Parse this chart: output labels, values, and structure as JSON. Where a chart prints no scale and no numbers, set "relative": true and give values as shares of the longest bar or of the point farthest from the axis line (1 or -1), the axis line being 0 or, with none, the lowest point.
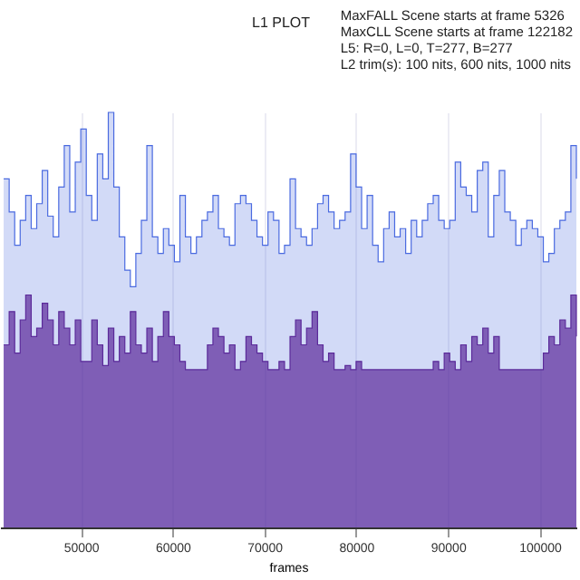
{
  "chart_data": {
    "type": "area",
    "title": "L1 PLOT",
    "xlabel": "frames",
    "annotations": [
      "MaxFALL Scene starts at frame 5326",
      "MaxCLL Scene starts at frame 122182",
      "L5: R=0, L=0, T=277, B=277",
      "L2 trim(s): 100 nits, 600 nits, 1000 nits"
    ],
    "relative": true,
    "xlim": [
      41200,
      104000
    ],
    "xticks": [
      50000,
      60000,
      70000,
      80000,
      90000,
      100000
    ],
    "grid": "x",
    "x": [
      41600,
      42200,
      42800,
      43400,
      44000,
      44600,
      45200,
      45800,
      46400,
      47000,
      47600,
      48200,
      48800,
      49400,
      50000,
      50600,
      51200,
      51800,
      52400,
      53000,
      53600,
      54200,
      54800,
      55400,
      56000,
      56600,
      57200,
      57800,
      58400,
      59000,
      59600,
      60200,
      60800,
      61400,
      62000,
      62600,
      63200,
      63800,
      64400,
      65000,
      65600,
      66200,
      66800,
      67400,
      68000,
      68600,
      69200,
      69800,
      70400,
      71000,
      71600,
      72200,
      72800,
      73400,
      74000,
      74600,
      75200,
      75800,
      76400,
      77000,
      77600,
      78200,
      78800,
      79400,
      80000,
      80600,
      81200,
      81800,
      82400,
      83000,
      83600,
      84200,
      84800,
      85400,
      86000,
      86600,
      87200,
      87800,
      88400,
      89000,
      89600,
      90200,
      90800,
      91400,
      92000,
      92600,
      93200,
      93800,
      94400,
      95000,
      95600,
      96200,
      96800,
      97400,
      98000,
      98600,
      99200,
      99800,
      100400,
      101000,
      101600,
      102200,
      102800,
      103400,
      104000
    ],
    "series": [
      {
        "color": "#4a6ae0",
        "values": [
          0.84,
          0.76,
          0.68,
          0.74,
          0.8,
          0.72,
          0.78,
          0.86,
          0.75,
          0.7,
          0.82,
          0.92,
          0.76,
          0.88,
          0.96,
          0.8,
          0.74,
          0.9,
          0.84,
          1.0,
          0.82,
          0.7,
          0.62,
          0.58,
          0.66,
          0.74,
          0.92,
          0.7,
          0.66,
          0.72,
          0.68,
          0.64,
          0.8,
          0.7,
          0.66,
          0.7,
          0.74,
          0.76,
          0.8,
          0.72,
          0.7,
          0.68,
          0.78,
          0.8,
          0.78,
          0.74,
          0.7,
          0.68,
          0.76,
          0.74,
          0.66,
          0.68,
          0.84,
          0.72,
          0.7,
          0.68,
          0.72,
          0.78,
          0.8,
          0.76,
          0.72,
          0.74,
          0.76,
          0.9,
          0.82,
          0.72,
          0.8,
          0.68,
          0.64,
          0.72,
          0.76,
          0.7,
          0.72,
          0.66,
          0.74,
          0.7,
          0.74,
          0.78,
          0.8,
          0.74,
          0.72,
          0.74,
          0.88,
          0.82,
          0.8,
          0.76,
          0.86,
          0.88,
          0.7,
          0.8,
          0.86,
          0.76,
          0.74,
          0.68,
          0.72,
          0.74,
          0.72,
          0.7,
          0.64,
          0.66,
          0.72,
          0.74,
          0.76,
          0.92,
          0.84
        ]
      },
      {
        "color": "#5b2a9a",
        "values": [
          0.44,
          0.52,
          0.42,
          0.5,
          0.56,
          0.46,
          0.48,
          0.54,
          0.5,
          0.44,
          0.52,
          0.48,
          0.44,
          0.5,
          0.4,
          0.4,
          0.5,
          0.44,
          0.39,
          0.48,
          0.4,
          0.46,
          0.42,
          0.52,
          0.44,
          0.42,
          0.48,
          0.4,
          0.46,
          0.52,
          0.46,
          0.44,
          0.4,
          0.38,
          0.38,
          0.38,
          0.38,
          0.44,
          0.48,
          0.46,
          0.42,
          0.44,
          0.38,
          0.4,
          0.46,
          0.44,
          0.42,
          0.4,
          0.38,
          0.38,
          0.4,
          0.38,
          0.46,
          0.5,
          0.44,
          0.48,
          0.52,
          0.44,
          0.4,
          0.42,
          0.38,
          0.38,
          0.39,
          0.38,
          0.4,
          0.38,
          0.38,
          0.38,
          0.38,
          0.38,
          0.38,
          0.38,
          0.38,
          0.38,
          0.38,
          0.38,
          0.38,
          0.38,
          0.4,
          0.38,
          0.42,
          0.4,
          0.38,
          0.44,
          0.4,
          0.46,
          0.44,
          0.48,
          0.42,
          0.46,
          0.38,
          0.38,
          0.38,
          0.38,
          0.38,
          0.38,
          0.38,
          0.38,
          0.42,
          0.46,
          0.44,
          0.5,
          0.48,
          0.56,
          0.46
        ]
      }
    ]
  }
}
